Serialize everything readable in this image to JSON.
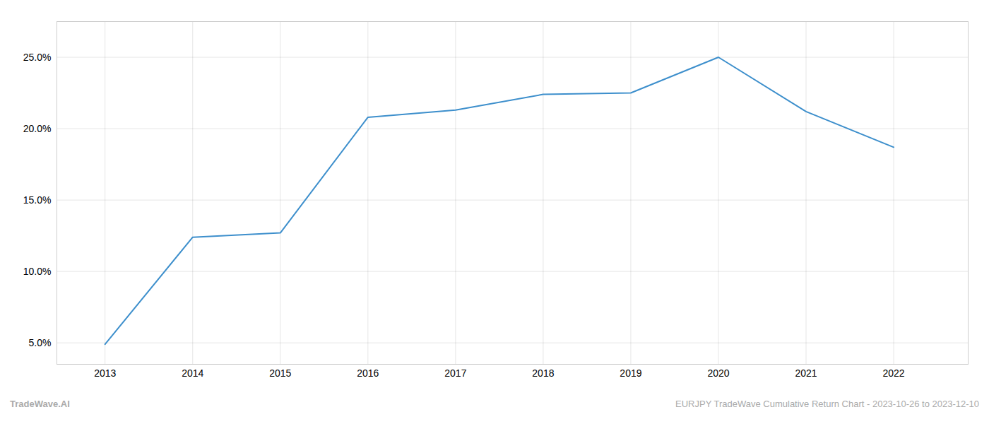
{
  "chart_data": {
    "type": "line",
    "x": [
      2013,
      2014,
      2015,
      2016,
      2017,
      2018,
      2019,
      2020,
      2021,
      2022
    ],
    "values": [
      4.9,
      12.4,
      12.7,
      20.8,
      21.3,
      22.4,
      22.5,
      25.0,
      21.2,
      18.7
    ],
    "color": "#3d8fcc",
    "xlim": [
      2012.45,
      2022.85
    ],
    "xticks": [
      2013,
      2014,
      2015,
      2016,
      2017,
      2018,
      2019,
      2020,
      2021,
      2022
    ],
    "ylim": [
      3.5,
      27.5
    ],
    "yticks": [
      {
        "value": 5.0,
        "label": "5.0%"
      },
      {
        "value": 10.0,
        "label": "10.0%"
      },
      {
        "value": 15.0,
        "label": "15.0%"
      },
      {
        "value": 20.0,
        "label": "20.0%"
      },
      {
        "value": 25.0,
        "label": "25.0%"
      }
    ],
    "grid": true,
    "annotations": [
      "TradeWave.AI",
      "EURJPY TradeWave Cumulative Return Chart - 2023-10-26 to 2023-12-10"
    ]
  }
}
